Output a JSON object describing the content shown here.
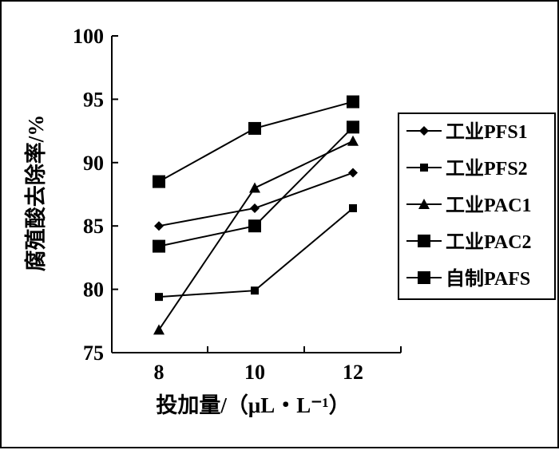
{
  "chart_data": {
    "type": "line",
    "title": "",
    "xlabel": "投加量/（μL・L⁻¹）",
    "ylabel": "腐殖酸去除率/%",
    "x": [
      8,
      10,
      12
    ],
    "x_tick_labels": [
      "8",
      "10",
      "12"
    ],
    "ylim": [
      75,
      100
    ],
    "y_ticks": [
      75,
      80,
      85,
      90,
      95,
      100
    ],
    "y_tick_labels": [
      "75",
      "80",
      "85",
      "90",
      "95",
      "100"
    ],
    "grid": false,
    "legend_position": "right",
    "series": [
      {
        "name": "工业PFS1",
        "marker": "diamond",
        "values": [
          85.0,
          86.4,
          89.2
        ]
      },
      {
        "name": "工业PFS2",
        "marker": "small-square",
        "values": [
          79.4,
          79.9,
          86.4
        ]
      },
      {
        "name": "工业PAC1",
        "marker": "triangle",
        "values": [
          76.8,
          88.0,
          91.7
        ]
      },
      {
        "name": "工业PAC2",
        "marker": "square",
        "values": [
          83.4,
          85.0,
          92.8
        ]
      },
      {
        "name": "自制PAFS",
        "marker": "square",
        "values": [
          88.5,
          92.7,
          94.8
        ]
      }
    ]
  }
}
